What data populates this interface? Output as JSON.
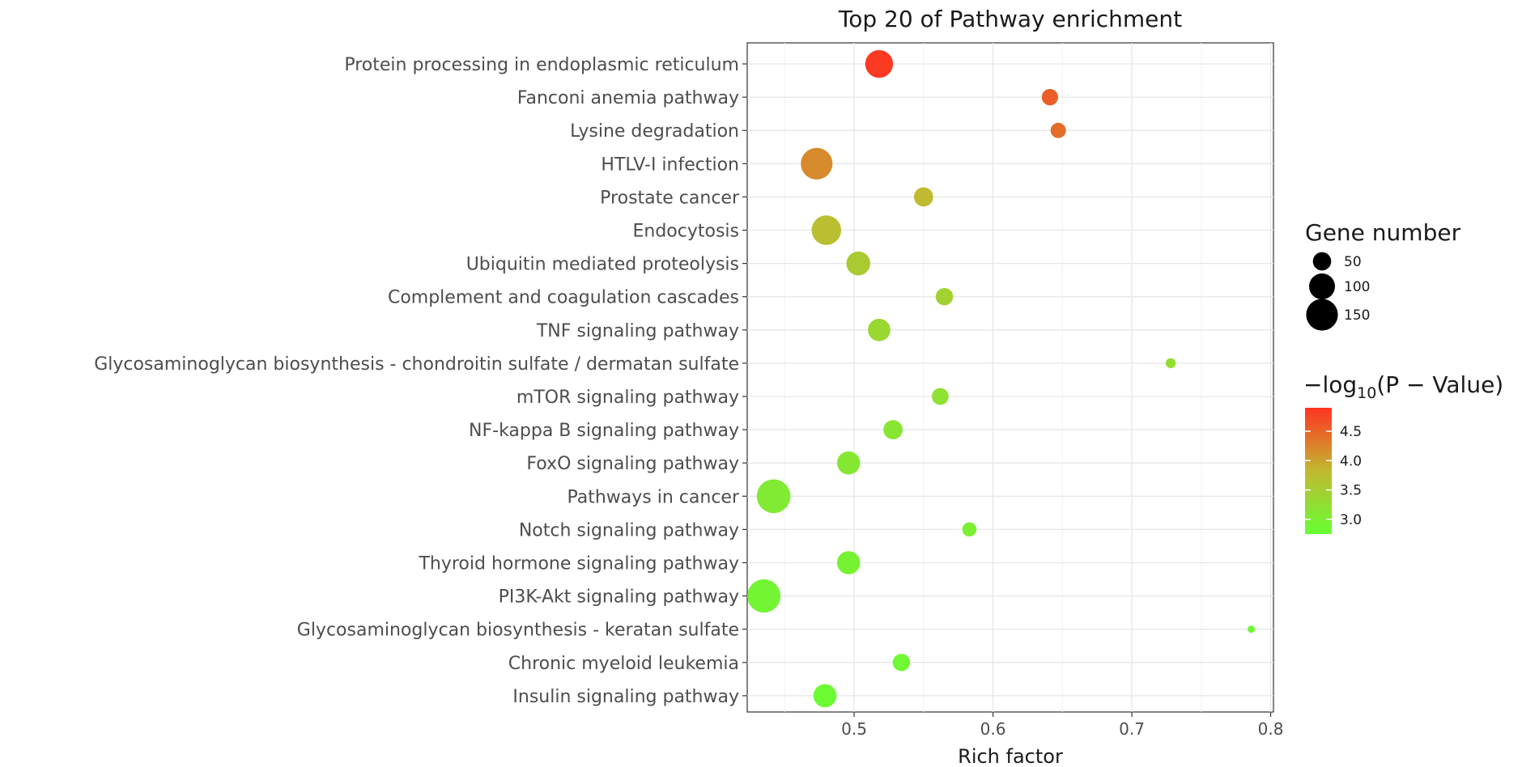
{
  "chart_data": {
    "type": "scatter",
    "title": "Top 20 of Pathway enrichment",
    "xlabel": "Rich factor",
    "ylabel": "",
    "xlim": [
      0.423,
      0.802
    ],
    "xticks": [
      "0.5",
      "0.6",
      "0.7",
      "0.8"
    ],
    "xtick_values": [
      0.5,
      0.6,
      0.7,
      0.8
    ],
    "grid": true,
    "legend_placement": "right",
    "size_legend": {
      "title": "Gene number",
      "values": [
        50,
        100,
        150
      ],
      "labels": [
        "50",
        "100",
        "150"
      ]
    },
    "color_legend": {
      "title_prefix": "−log",
      "title_sub": "10",
      "title_suffix": "(P − Value)",
      "ticks": [
        "4.5",
        "4.0",
        "3.5",
        "3.0"
      ],
      "tick_values": [
        4.5,
        4.0,
        3.5,
        3.0
      ],
      "range": [
        2.75,
        4.9
      ],
      "low_color": "#66ff33",
      "mid_color": "#c2b830",
      "high_color": "#ff3322"
    },
    "points": [
      {
        "pathway": "Protein processing in endoplasmic reticulum",
        "rich_factor": 0.518,
        "gene_number": 115,
        "neg_log10_p": 4.85
      },
      {
        "pathway": "Fanconi anemia pathway",
        "rich_factor": 0.641,
        "gene_number": 40,
        "neg_log10_p": 4.55
      },
      {
        "pathway": "Lysine degradation",
        "rich_factor": 0.647,
        "gene_number": 35,
        "neg_log10_p": 4.45
      },
      {
        "pathway": "HTLV-I infection",
        "rich_factor": 0.473,
        "gene_number": 150,
        "neg_log10_p": 4.2
      },
      {
        "pathway": "Prostate cancer",
        "rich_factor": 0.55,
        "gene_number": 55,
        "neg_log10_p": 3.8
      },
      {
        "pathway": "Endocytosis",
        "rich_factor": 0.48,
        "gene_number": 130,
        "neg_log10_p": 3.72
      },
      {
        "pathway": "Ubiquitin mediated proteolysis",
        "rich_factor": 0.503,
        "gene_number": 85,
        "neg_log10_p": 3.55
      },
      {
        "pathway": "Complement and coagulation cascades",
        "rich_factor": 0.565,
        "gene_number": 45,
        "neg_log10_p": 3.45
      },
      {
        "pathway": "TNF signaling pathway",
        "rich_factor": 0.518,
        "gene_number": 75,
        "neg_log10_p": 3.35
      },
      {
        "pathway": "Glycosaminoglycan biosynthesis - chondroitin sulfate / dermatan sulfate",
        "rich_factor": 0.728,
        "gene_number": 15,
        "neg_log10_p": 3.25
      },
      {
        "pathway": "mTOR signaling pathway",
        "rich_factor": 0.562,
        "gene_number": 42,
        "neg_log10_p": 3.2
      },
      {
        "pathway": "NF-kappa B signaling pathway",
        "rich_factor": 0.528,
        "gene_number": 55,
        "neg_log10_p": 3.15
      },
      {
        "pathway": "FoxO signaling pathway",
        "rich_factor": 0.496,
        "gene_number": 80,
        "neg_log10_p": 3.1
      },
      {
        "pathway": "Pathways in cancer",
        "rich_factor": 0.442,
        "gene_number": 170,
        "neg_log10_p": 3.05
      },
      {
        "pathway": "Notch signaling pathway",
        "rich_factor": 0.583,
        "gene_number": 30,
        "neg_log10_p": 2.98
      },
      {
        "pathway": "Thyroid hormone signaling pathway",
        "rich_factor": 0.496,
        "gene_number": 80,
        "neg_log10_p": 2.95
      },
      {
        "pathway": "PI3K-Akt signaling pathway",
        "rich_factor": 0.435,
        "gene_number": 165,
        "neg_log10_p": 2.9
      },
      {
        "pathway": "Glycosaminoglycan biosynthesis - keratan sulfate",
        "rich_factor": 0.786,
        "gene_number": 8,
        "neg_log10_p": 2.87
      },
      {
        "pathway": "Chronic myeloid leukemia",
        "rich_factor": 0.534,
        "gene_number": 45,
        "neg_log10_p": 2.85
      },
      {
        "pathway": "Insulin signaling pathway",
        "rich_factor": 0.479,
        "gene_number": 80,
        "neg_log10_p": 2.82
      }
    ]
  }
}
